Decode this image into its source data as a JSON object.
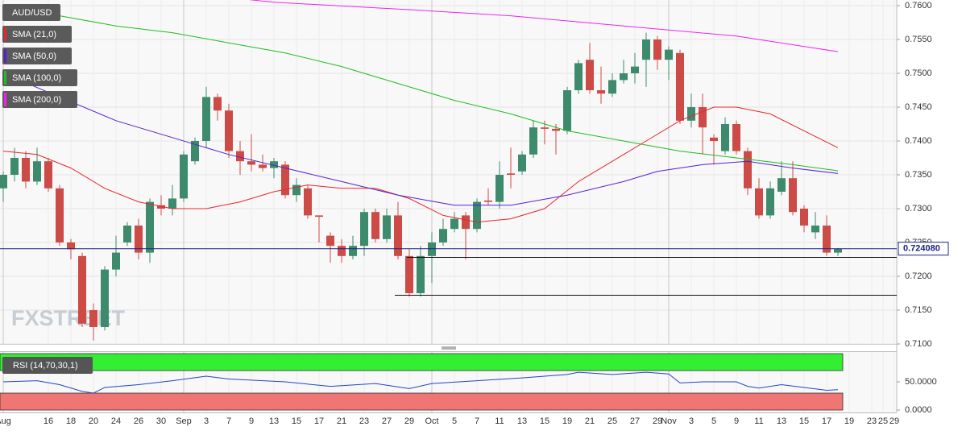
{
  "chart_data": [
    {
      "type": "candlestick",
      "categories": [
        "Aug",
        null,
        null,
        null,
        "16",
        null,
        "18",
        null,
        "20",
        null,
        "24",
        null,
        "26",
        null,
        "30",
        null,
        "Sep",
        null,
        "3",
        null,
        "7",
        null,
        "9",
        null,
        "13",
        null,
        "15",
        null,
        "17",
        null,
        "21",
        null,
        "23",
        null,
        "27",
        null,
        "29",
        null,
        "Oct",
        null,
        "5",
        null,
        "7",
        null,
        "11",
        null,
        "13",
        null,
        "15",
        null,
        "19",
        null,
        "21",
        null,
        "25",
        null,
        "27",
        null,
        "29",
        "Nov",
        null,
        "3",
        null,
        "5",
        null,
        "9",
        null,
        "11",
        null,
        "13",
        null,
        "15",
        null,
        "17",
        null,
        "19",
        null,
        "23",
        "25",
        "29"
      ],
      "series": [
        {
          "name": "AUD/USD",
          "up_color": "#3d8a6c",
          "down_color": "#cc4b47",
          "open": [
            0.733,
            0.735,
            0.7375,
            0.734,
            0.737,
            0.733,
            0.725,
            0.723,
            0.715,
            0.7125,
            0.721,
            0.725,
            0.7275,
            0.7235,
            0.7305,
            0.73,
            0.7315,
            0.737,
            0.74,
            0.7465,
            0.7445,
            0.7385,
            0.737,
            0.7365,
            0.736,
            0.7365,
            0.732,
            0.733,
            0.729,
            0.726,
            0.7245,
            0.723,
            0.7245,
            0.7295,
            0.7255,
            0.729,
            0.723,
            0.7175,
            0.723,
            0.725,
            0.727,
            0.729,
            0.727,
            0.7312,
            0.731,
            0.7352,
            0.7355,
            0.738,
            0.742,
            0.7418,
            0.7415,
            0.7475,
            0.752,
            0.7475,
            0.747,
            0.749,
            0.75,
            0.752,
            0.755,
            0.752,
            0.753,
            0.743,
            0.745,
            0.7405,
            0.7385,
            0.7425,
            0.7385,
            0.733,
            0.729,
            0.7325,
            0.7345,
            0.73,
            0.7265,
            0.7275,
            0.7235,
            null,
            null,
            null,
            null,
            null
          ],
          "high": [
            0.7355,
            0.739,
            0.7385,
            0.739,
            0.7375,
            0.7335,
            0.7255,
            0.7235,
            0.716,
            0.7215,
            0.726,
            0.728,
            0.7285,
            0.7315,
            0.732,
            0.7335,
            0.7385,
            0.7405,
            0.748,
            0.747,
            0.7455,
            0.74,
            0.741,
            0.738,
            0.7375,
            0.737,
            0.7345,
            0.7335,
            0.729,
            0.7265,
            0.7255,
            0.726,
            0.73,
            0.73,
            0.73,
            0.731,
            0.724,
            0.7245,
            0.7265,
            0.7285,
            0.7295,
            0.7295,
            0.7315,
            0.733,
            0.737,
            0.739,
            0.7385,
            0.743,
            0.743,
            0.7425,
            0.748,
            0.752,
            0.7545,
            0.751,
            0.75,
            0.752,
            0.753,
            0.756,
            0.7555,
            0.754,
            0.7535,
            0.747,
            0.747,
            0.741,
            0.7435,
            0.743,
            0.739,
            0.7345,
            0.734,
            0.737,
            0.737,
            0.7305,
            0.7295,
            0.729,
            0.7242,
            null,
            null,
            null,
            null,
            null
          ],
          "low": [
            0.731,
            0.734,
            0.733,
            0.7335,
            0.7325,
            0.7245,
            0.7225,
            0.7125,
            0.7105,
            0.712,
            0.72,
            0.7245,
            0.7225,
            0.722,
            0.729,
            0.729,
            0.731,
            0.7365,
            0.739,
            0.743,
            0.7375,
            0.735,
            0.7355,
            0.7355,
            0.7345,
            0.7315,
            0.731,
            0.7285,
            0.725,
            0.722,
            0.722,
            0.7225,
            0.723,
            0.725,
            0.725,
            0.7225,
            0.717,
            0.717,
            0.719,
            0.7245,
            0.7265,
            0.7225,
            0.7265,
            0.7305,
            0.73,
            0.733,
            0.735,
            0.7375,
            0.7395,
            0.738,
            0.741,
            0.747,
            0.747,
            0.7455,
            0.7465,
            0.7485,
            0.7485,
            0.748,
            0.7505,
            0.749,
            0.7425,
            0.742,
            0.738,
            0.7365,
            0.738,
            0.738,
            0.732,
            0.7285,
            0.7285,
            0.732,
            0.729,
            0.7265,
            0.7255,
            0.723,
            0.723,
            null,
            null,
            null,
            null,
            null
          ],
          "close": [
            0.735,
            0.7375,
            0.734,
            0.737,
            0.733,
            0.725,
            0.724,
            0.713,
            0.7125,
            0.721,
            0.7235,
            0.7275,
            0.7235,
            0.731,
            0.73,
            0.7315,
            0.738,
            0.74,
            0.7465,
            0.7445,
            0.7385,
            0.737,
            0.7365,
            0.736,
            0.737,
            0.732,
            0.7335,
            0.729,
            0.7288,
            0.7245,
            0.723,
            0.7245,
            0.7295,
            0.7255,
            0.729,
            0.723,
            0.7175,
            0.723,
            0.725,
            0.727,
            0.7285,
            0.727,
            0.731,
            0.731,
            0.735,
            0.735,
            0.738,
            0.742,
            0.7418,
            0.7415,
            0.7475,
            0.7515,
            0.7475,
            0.747,
            0.749,
            0.75,
            0.751,
            0.755,
            0.752,
            0.7535,
            0.743,
            0.745,
            0.742,
            0.74,
            0.7425,
            0.7385,
            0.733,
            0.729,
            0.733,
            0.7345,
            0.7295,
            0.7275,
            0.7275,
            0.7235,
            0.72408,
            null,
            null,
            null,
            null,
            null
          ]
        }
      ],
      "lines": [
        {
          "name": "SMA (21,0)",
          "color": "#e8262b",
          "x": [
            0,
            3,
            6,
            9,
            12,
            15,
            18,
            21,
            24,
            27,
            30,
            33,
            36,
            39,
            42,
            45,
            48,
            51,
            54,
            57,
            60,
            63,
            65,
            68,
            71,
            74
          ],
          "values": [
            0.7385,
            0.738,
            0.736,
            0.733,
            0.731,
            0.73,
            0.73,
            0.731,
            0.7325,
            0.7335,
            0.733,
            0.733,
            0.7315,
            0.729,
            0.728,
            0.7285,
            0.73,
            0.734,
            0.737,
            0.74,
            0.743,
            0.745,
            0.745,
            0.744,
            0.7415,
            0.739
          ]
        },
        {
          "name": "SMA (50,0)",
          "color": "#5522cc",
          "x": [
            0,
            5,
            10,
            15,
            20,
            25,
            30,
            35,
            40,
            45,
            50,
            55,
            58,
            62,
            66,
            70,
            74
          ],
          "values": [
            0.75,
            0.7465,
            0.743,
            0.7405,
            0.738,
            0.736,
            0.734,
            0.732,
            0.7305,
            0.7305,
            0.732,
            0.734,
            0.7355,
            0.7365,
            0.737,
            0.736,
            0.7352
          ]
        },
        {
          "name": "SMA (100,0)",
          "color": "#22bb22",
          "x": [
            0,
            5,
            10,
            15,
            20,
            25,
            30,
            35,
            40,
            45,
            50,
            55,
            60,
            65,
            70,
            74
          ],
          "values": [
            0.76,
            0.7585,
            0.757,
            0.756,
            0.7545,
            0.753,
            0.751,
            0.7485,
            0.746,
            0.744,
            0.7415,
            0.74,
            0.7385,
            0.7375,
            0.7365,
            0.7356
          ]
        },
        {
          "name": "SMA (200,0)",
          "color": "#ee22ee",
          "x": [
            20,
            24,
            35,
            45,
            55,
            65,
            74
          ],
          "values": [
            0.7612,
            0.7605,
            0.7595,
            0.7585,
            0.757,
            0.7555,
            0.7532
          ]
        }
      ],
      "last_price": {
        "value": 0.72408,
        "label": "0.724080"
      },
      "support_lines": [
        0.7228,
        0.7172
      ],
      "ylim": [
        0.71,
        0.76
      ],
      "yticks": [
        {
          "value": 0.71,
          "label": "0.7100"
        },
        {
          "value": 0.715,
          "label": "0.7150"
        },
        {
          "value": 0.72,
          "label": "0.7200"
        },
        {
          "value": 0.725,
          "label": "0.7250"
        },
        {
          "value": 0.73,
          "label": "0.7300"
        },
        {
          "value": 0.735,
          "label": "0.7350"
        },
        {
          "value": 0.74,
          "label": "0.7400"
        },
        {
          "value": 0.745,
          "label": "0.7450"
        },
        {
          "value": 0.75,
          "label": "0.7500"
        },
        {
          "value": 0.755,
          "label": "0.7550"
        },
        {
          "value": 0.76,
          "label": "0.7600"
        }
      ],
      "grid": true,
      "watermark": "FXSTREET"
    },
    {
      "type": "line",
      "title": "RSI (14,70,30,1)",
      "series": [
        {
          "color": "#2244cc",
          "x": [
            0,
            3,
            5,
            7,
            8,
            9,
            12,
            15,
            18,
            20,
            25,
            29,
            33,
            36,
            38,
            42,
            46,
            50,
            51,
            54,
            57,
            59,
            60,
            62,
            65,
            66,
            67,
            69,
            71,
            73,
            74
          ],
          "values": [
            50,
            52,
            45,
            33,
            30,
            40,
            45,
            52,
            60,
            55,
            50,
            42,
            47,
            38,
            47,
            52,
            57,
            63,
            67,
            63,
            67,
            64,
            48,
            50,
            50,
            42,
            39,
            45,
            40,
            35,
            36
          ]
        }
      ],
      "bands": [
        {
          "from": 70,
          "to": 100,
          "color": "#33ee33"
        },
        {
          "from": 0,
          "to": 30,
          "color": "#f07575"
        }
      ],
      "ylim": [
        0,
        100
      ],
      "yticks": [
        {
          "value": 0,
          "label": "0.0000"
        },
        {
          "value": 50,
          "label": "50.0000"
        }
      ]
    }
  ]
}
